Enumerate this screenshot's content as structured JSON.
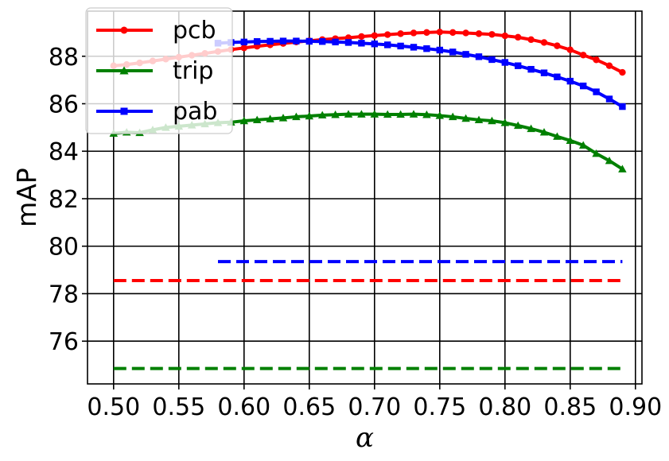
{
  "chart_data": {
    "type": "line",
    "xlabel": "α",
    "ylabel": "mAP",
    "xlim": [
      0.48,
      0.905
    ],
    "ylim": [
      74.2,
      89.9
    ],
    "grid": true,
    "legend_position": "top-left",
    "xticks": [
      "0.50",
      "0.55",
      "0.60",
      "0.65",
      "0.70",
      "0.75",
      "0.80",
      "0.85",
      "0.90"
    ],
    "yticks": [
      "76",
      "78",
      "80",
      "82",
      "84",
      "86",
      "88"
    ],
    "series": [
      {
        "name": "pcb",
        "color": "#ff0000",
        "marker": "circle",
        "x": [
          0.5,
          0.51,
          0.52,
          0.53,
          0.54,
          0.55,
          0.56,
          0.57,
          0.58,
          0.59,
          0.6,
          0.61,
          0.62,
          0.63,
          0.64,
          0.65,
          0.66,
          0.67,
          0.68,
          0.69,
          0.7,
          0.71,
          0.72,
          0.73,
          0.74,
          0.75,
          0.76,
          0.77,
          0.78,
          0.79,
          0.8,
          0.81,
          0.82,
          0.83,
          0.84,
          0.85,
          0.86,
          0.87,
          0.88,
          0.89
        ],
        "y": [
          87.6,
          87.65,
          87.72,
          87.8,
          87.88,
          87.96,
          88.04,
          88.12,
          88.2,
          88.28,
          88.35,
          88.42,
          88.48,
          88.54,
          88.6,
          88.65,
          88.7,
          88.74,
          88.78,
          88.83,
          88.87,
          88.91,
          88.95,
          88.98,
          89.0,
          89.02,
          89.0,
          88.98,
          88.95,
          88.92,
          88.86,
          88.8,
          88.7,
          88.58,
          88.44,
          88.27,
          88.05,
          87.85,
          87.6,
          87.32
        ]
      },
      {
        "name": "trip",
        "color": "#008000",
        "marker": "triangle",
        "x": [
          0.5,
          0.51,
          0.52,
          0.53,
          0.54,
          0.55,
          0.56,
          0.57,
          0.58,
          0.59,
          0.6,
          0.61,
          0.62,
          0.63,
          0.64,
          0.65,
          0.66,
          0.67,
          0.68,
          0.69,
          0.7,
          0.71,
          0.72,
          0.73,
          0.74,
          0.75,
          0.76,
          0.77,
          0.78,
          0.79,
          0.8,
          0.81,
          0.82,
          0.83,
          0.84,
          0.85,
          0.86,
          0.87,
          0.88,
          0.89
        ],
        "y": [
          84.75,
          84.8,
          84.78,
          84.9,
          85.0,
          85.05,
          85.1,
          85.15,
          85.2,
          85.22,
          85.28,
          85.32,
          85.36,
          85.4,
          85.45,
          85.48,
          85.52,
          85.54,
          85.56,
          85.56,
          85.56,
          85.55,
          85.55,
          85.56,
          85.54,
          85.5,
          85.45,
          85.38,
          85.32,
          85.28,
          85.2,
          85.08,
          84.95,
          84.8,
          84.62,
          84.45,
          84.25,
          83.9,
          83.6,
          83.25
        ]
      },
      {
        "name": "pab",
        "color": "#0000ff",
        "marker": "square",
        "x": [
          0.58,
          0.59,
          0.6,
          0.61,
          0.62,
          0.63,
          0.64,
          0.65,
          0.66,
          0.67,
          0.68,
          0.69,
          0.7,
          0.71,
          0.72,
          0.73,
          0.74,
          0.75,
          0.76,
          0.77,
          0.78,
          0.79,
          0.8,
          0.81,
          0.82,
          0.83,
          0.84,
          0.85,
          0.86,
          0.87,
          0.88,
          0.89
        ],
        "y": [
          88.55,
          88.58,
          88.6,
          88.62,
          88.63,
          88.64,
          88.64,
          88.63,
          88.62,
          88.6,
          88.58,
          88.55,
          88.52,
          88.48,
          88.43,
          88.38,
          88.32,
          88.26,
          88.18,
          88.08,
          87.98,
          87.86,
          87.74,
          87.6,
          87.45,
          87.3,
          87.13,
          86.95,
          86.75,
          86.5,
          86.2,
          85.88
        ]
      }
    ],
    "baselines": [
      {
        "series": "pab",
        "color": "#0000ff",
        "y": 79.35,
        "x_range": [
          0.58,
          0.89
        ]
      },
      {
        "series": "pcb",
        "color": "#ff0000",
        "y": 78.55,
        "x_range": [
          0.5,
          0.89
        ]
      },
      {
        "series": "trip",
        "color": "#008000",
        "y": 74.85,
        "x_range": [
          0.5,
          0.89
        ]
      }
    ]
  }
}
